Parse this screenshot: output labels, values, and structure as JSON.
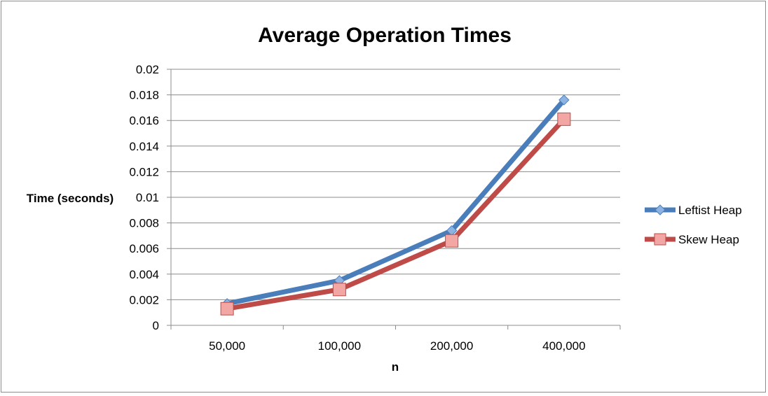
{
  "chart_data": {
    "type": "line",
    "title": "Average Operation Times",
    "xlabel": "n",
    "ylabel": "Time (seconds)",
    "categories": [
      "50,000",
      "100,000",
      "200,000",
      "400,000"
    ],
    "ylim": [
      0,
      0.02
    ],
    "yticks": [
      0,
      0.002,
      0.004,
      0.006,
      0.008,
      0.01,
      0.012,
      0.014,
      0.016,
      0.018,
      0.02
    ],
    "ytick_labels": [
      "0",
      "0.002",
      "0.004",
      "0.006",
      "0.008",
      "0.01",
      "0.012",
      "0.014",
      "0.016",
      "0.018",
      "0.02"
    ],
    "grid": true,
    "legend_position": "right",
    "series": [
      {
        "name": "Leftist Heap",
        "values": [
          0.0017,
          0.0035,
          0.0074,
          0.0176
        ],
        "color": "#4a7ebb",
        "marker_color": "#8db3e2",
        "marker": "diamond"
      },
      {
        "name": "Skew Heap",
        "values": [
          0.0013,
          0.0028,
          0.0066,
          0.0161
        ],
        "color": "#be4b48",
        "marker_color": "#f2a7a5",
        "marker": "square"
      }
    ]
  }
}
